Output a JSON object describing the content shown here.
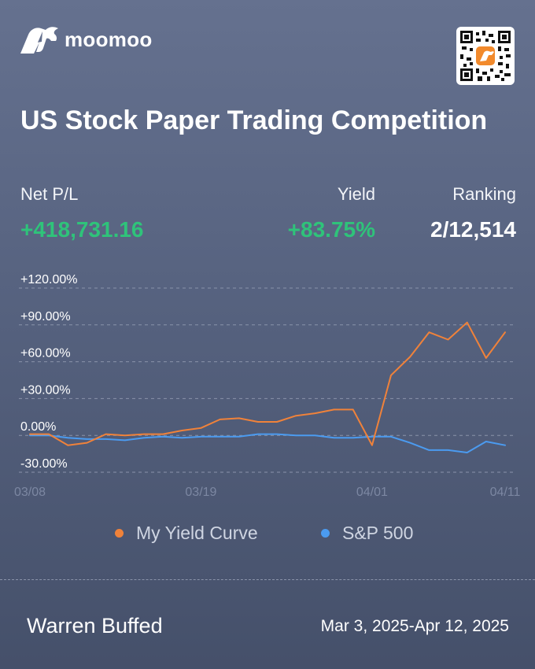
{
  "brand": {
    "name": "moomoo",
    "logo_icon": "bull-icon",
    "qr_icon": "qr-code-icon"
  },
  "title": "US Stock Paper Trading Competition",
  "stats": {
    "net_pl_label": "Net P/L",
    "net_pl_value": "+418,731.16",
    "yield_label": "Yield",
    "yield_value": "+83.75%",
    "ranking_label": "Ranking",
    "ranking_value": "2/12,514"
  },
  "colors": {
    "positive": "#2fc37a",
    "my_curve": "#f0823a",
    "sp500": "#4b9bf0",
    "background_top": "#65718f",
    "background_bottom": "#45506a"
  },
  "chart_data": {
    "type": "line",
    "ylim": [
      -30,
      120
    ],
    "y_ticks": [
      {
        "value": 120,
        "label": "+120.00%"
      },
      {
        "value": 90,
        "label": "+90.00%"
      },
      {
        "value": 60,
        "label": "+60.00%"
      },
      {
        "value": 30,
        "label": "+30.00%"
      },
      {
        "value": 0,
        "label": "0.00%"
      },
      {
        "value": -30,
        "label": "-30.00%"
      }
    ],
    "x_ticks": [
      {
        "index": 0,
        "label": "03/08"
      },
      {
        "index": 9,
        "label": "03/19"
      },
      {
        "index": 18,
        "label": "04/01"
      },
      {
        "index": 25,
        "label": "04/11"
      }
    ],
    "grid": true,
    "legend_position": "bottom-center",
    "series": [
      {
        "name": "My Yield Curve",
        "color": "#f0823a",
        "values": [
          1,
          1,
          -8,
          -6,
          1,
          0,
          1,
          1,
          4,
          6,
          13,
          14,
          11,
          11,
          16,
          18,
          21,
          21,
          -8,
          49,
          64,
          84,
          78,
          92,
          63,
          84
        ]
      },
      {
        "name": "S&P 500",
        "color": "#4b9bf0",
        "values": [
          0,
          0,
          -2,
          -3,
          -3,
          -4,
          -2,
          -1,
          -2,
          -1,
          -1,
          -1,
          1,
          1,
          0,
          0,
          -2,
          -2,
          -1,
          -1,
          -6,
          -12,
          -12,
          -14,
          -5,
          -8
        ]
      }
    ]
  },
  "user_name": "Warren Buffed",
  "period": "Mar 3, 2025-Apr 12, 2025"
}
